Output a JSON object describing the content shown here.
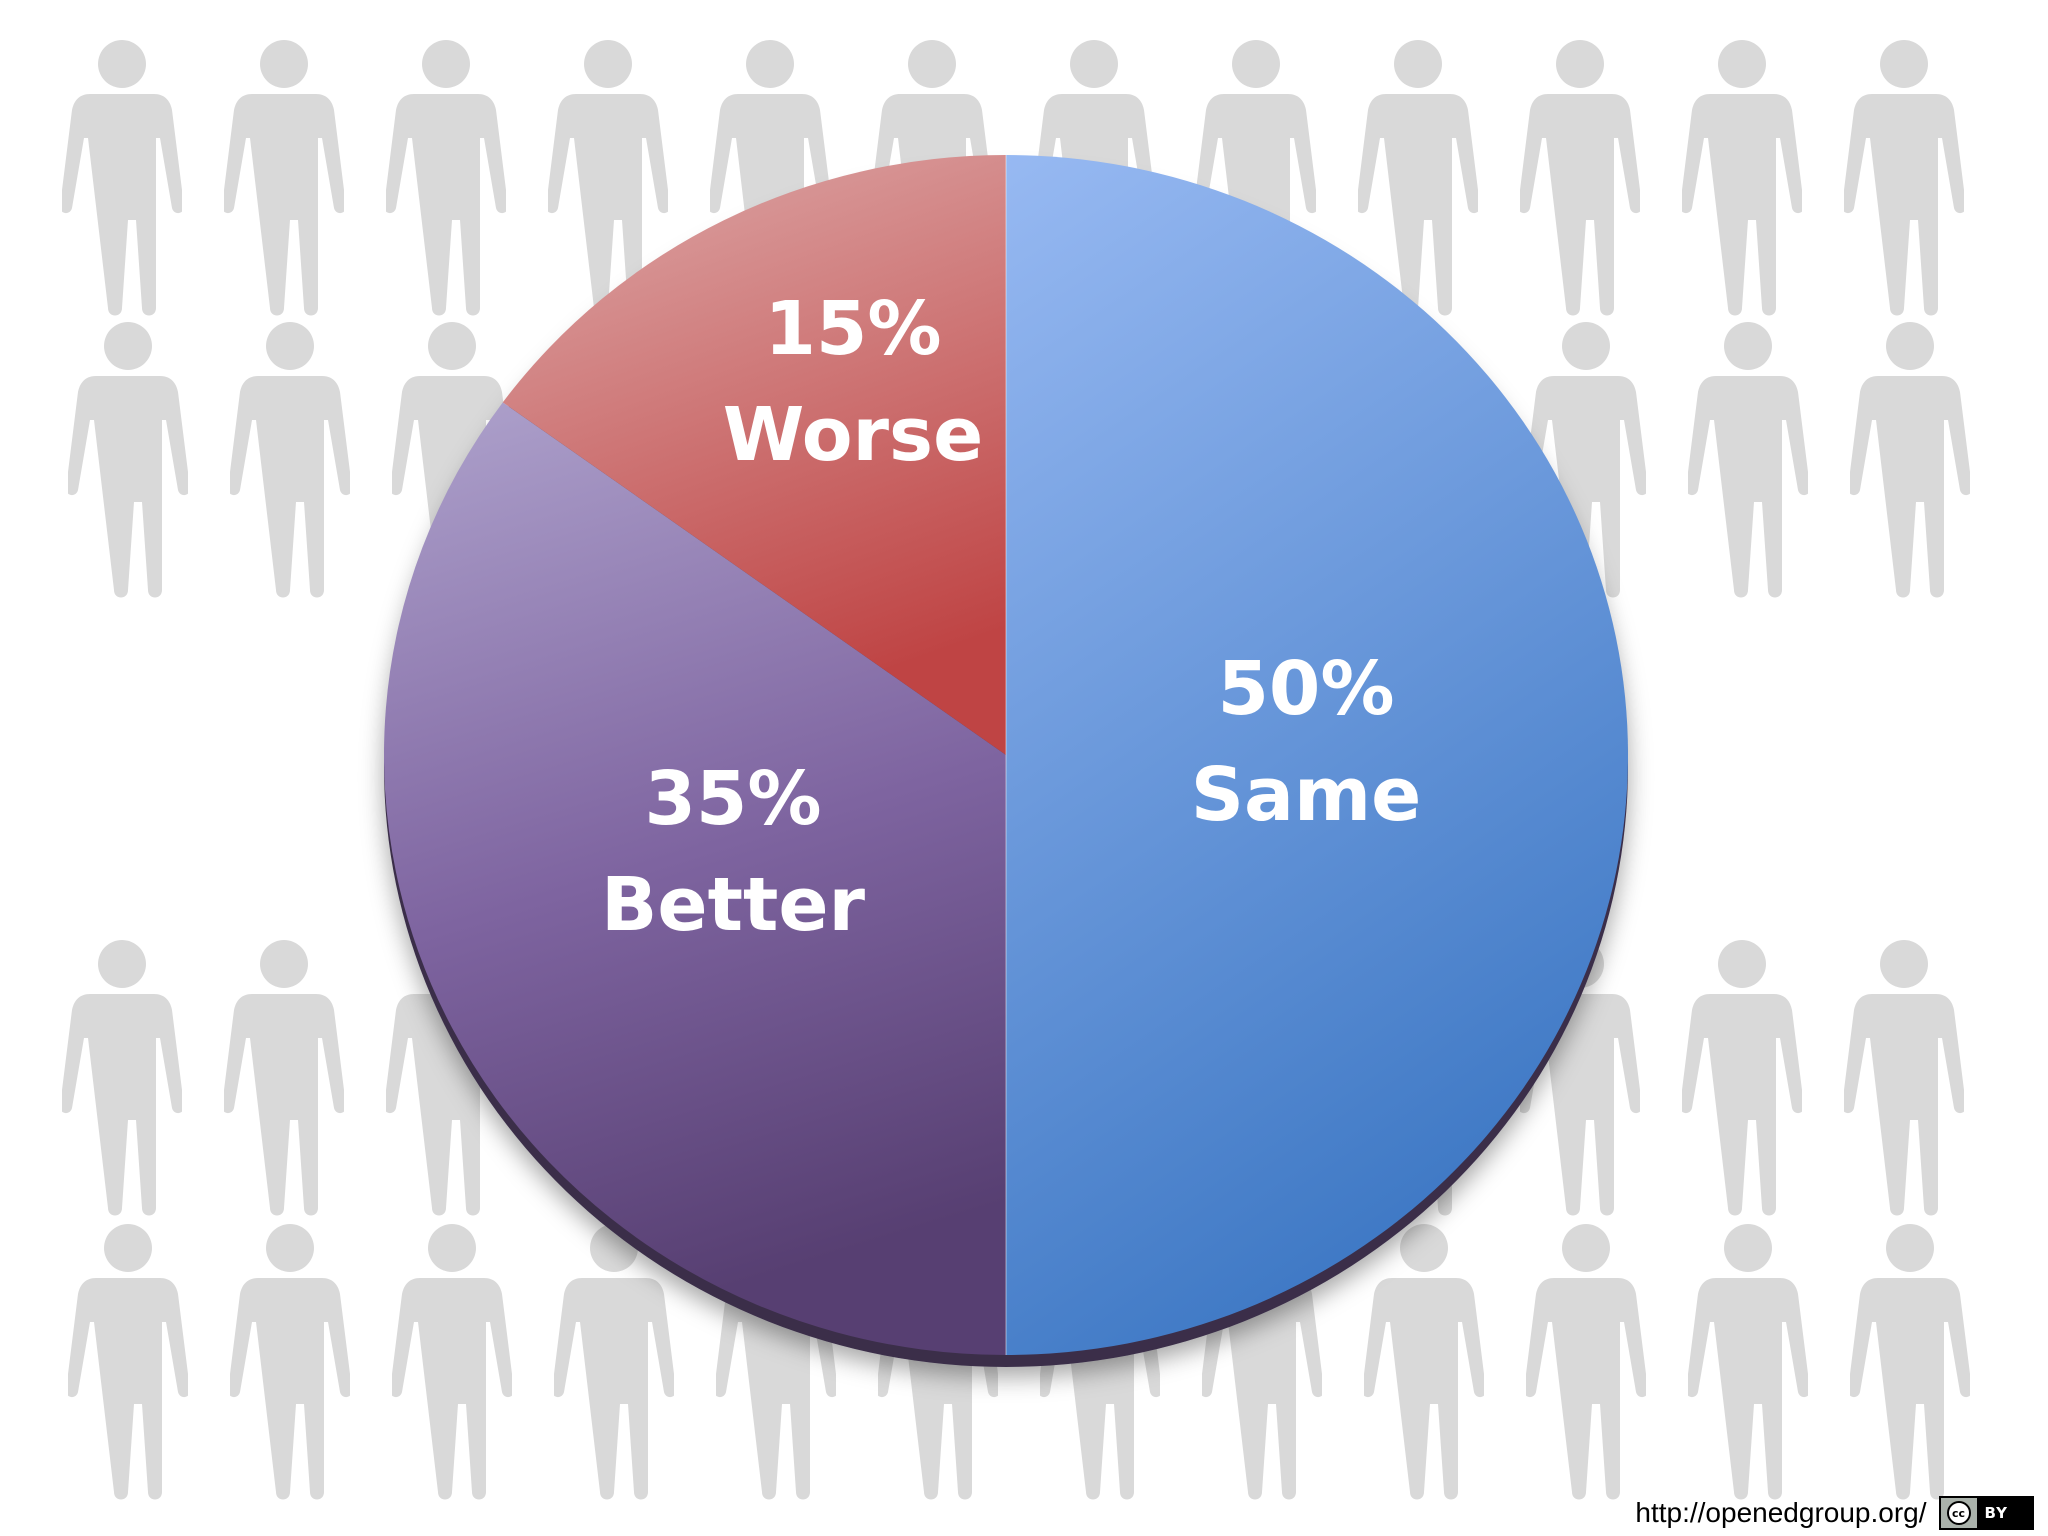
{
  "chart_data": {
    "type": "pie",
    "slices": [
      {
        "label": "Same",
        "value": 50,
        "display": "50%",
        "color": "#5b8fd6"
      },
      {
        "label": "Better",
        "value": 35,
        "display": "35%",
        "color": "#7e64a0"
      },
      {
        "label": "Worse",
        "value": 15,
        "display": "15%",
        "color": "#c85454"
      }
    ],
    "title": "",
    "legend": "none"
  },
  "background": {
    "icon": "person-icon",
    "color": "#d9d9d9"
  },
  "footer": {
    "source_url": "http://openedgroup.org/",
    "license_cc": "cc",
    "license_by": "BY"
  }
}
